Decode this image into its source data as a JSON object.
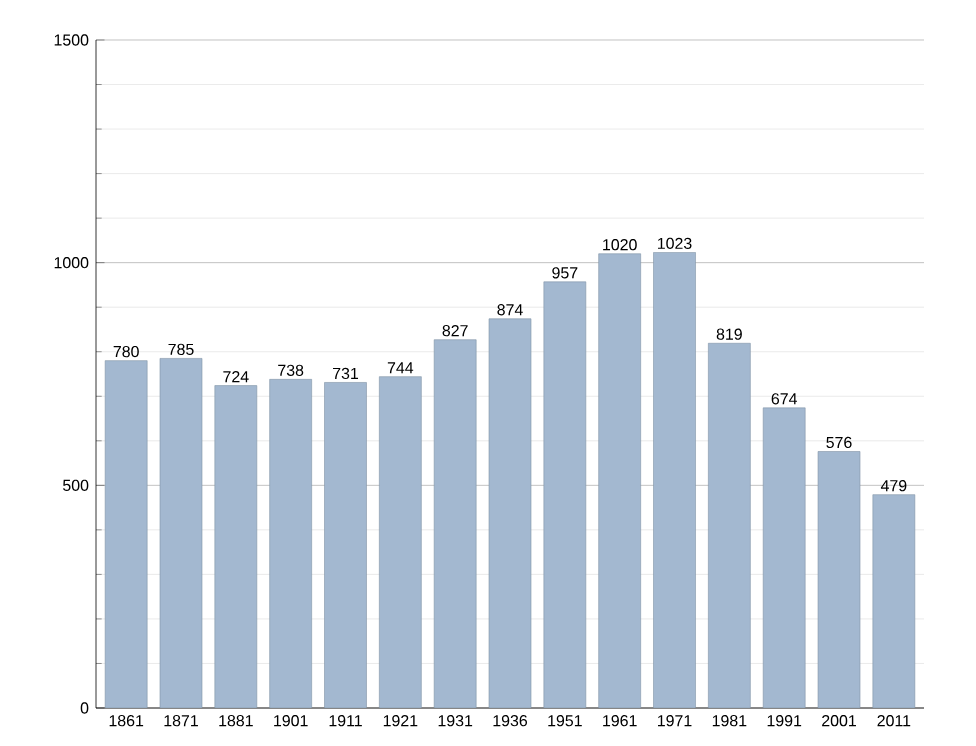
{
  "chart_data": {
    "type": "bar",
    "categories": [
      "1861",
      "1871",
      "1881",
      "1901",
      "1911",
      "1921",
      "1931",
      "1936",
      "1951",
      "1961",
      "1971",
      "1981",
      "1991",
      "2001",
      "2011"
    ],
    "values": [
      780,
      785,
      724,
      738,
      731,
      744,
      827,
      874,
      957,
      1020,
      1023,
      819,
      674,
      576,
      479
    ],
    "color": "#a3b8d0",
    "ylim": [
      0,
      1500
    ],
    "yticks": [
      0,
      500,
      1000,
      1500
    ],
    "grid": "y",
    "data_labels": true
  }
}
